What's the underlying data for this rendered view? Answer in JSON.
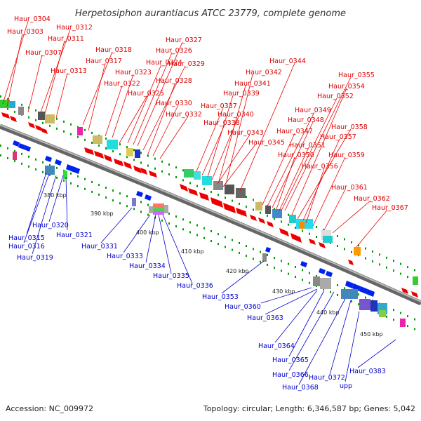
{
  "title": "Herpetosiphon aurantiacus ATCC 23779, complete genome",
  "footer": {
    "accession": "Accession: NC_009972",
    "summary": "Topology: circular; Length: 6,346,587 bp; Genes: 5,042"
  },
  "kbp_labels": [
    "380 kbp",
    "390 kbp",
    "400 kbp",
    "410 kbp",
    "420 kbp",
    "430 kbp",
    "440 kbp",
    "450 kbp"
  ],
  "top_labels": [
    "Haur_0304",
    "Haur_0303",
    "Haur_0312",
    "Haur_0311",
    "Haur_0307",
    "Haur_0313",
    "Haur_0318",
    "Haur_0317",
    "Haur_0327",
    "Haur_0326",
    "Haur_0324",
    "Haur_0323",
    "Haur_0329",
    "Haur_0322",
    "Haur_0328",
    "Haur_0325",
    "Haur_0330",
    "Haur_0332",
    "Haur_0344",
    "Haur_0342",
    "Haur_0341",
    "Haur_0339",
    "Haur_0337",
    "Haur_0340",
    "Haur_0338",
    "Haur_0343",
    "Haur_0345",
    "Haur_0355",
    "Haur_0354",
    "Haur_0352",
    "Haur_0349",
    "Haur_0348",
    "Haur_0347",
    "Haur_0358",
    "Haur_0351",
    "Haur_0357",
    "Haur_0350",
    "Haur_0359",
    "Haur_0356",
    "Haur_0361",
    "Haur_0362",
    "Haur_0367"
  ],
  "bottom_labels": [
    "Haur_0315",
    "Haur_0320",
    "Haur_0321",
    "Haur_0316",
    "Haur_0319",
    "Haur_0331",
    "Haur_0333",
    "Haur_0334",
    "Haur_0335",
    "Haur_0336",
    "Haur_0353",
    "Haur_0360",
    "Haur_0363",
    "Haur_0364",
    "Haur_0365",
    "Haur_0366",
    "Haur_0372",
    "Haur_0383",
    "Haur_0368",
    "upp"
  ],
  "colors": {
    "top_strand": "#ee0000",
    "bottom_strand": "#0022ee",
    "backbone": "#888888",
    "track_dots": "#009900",
    "label_top": "#dd0000",
    "label_bottom": "#0000cc"
  }
}
